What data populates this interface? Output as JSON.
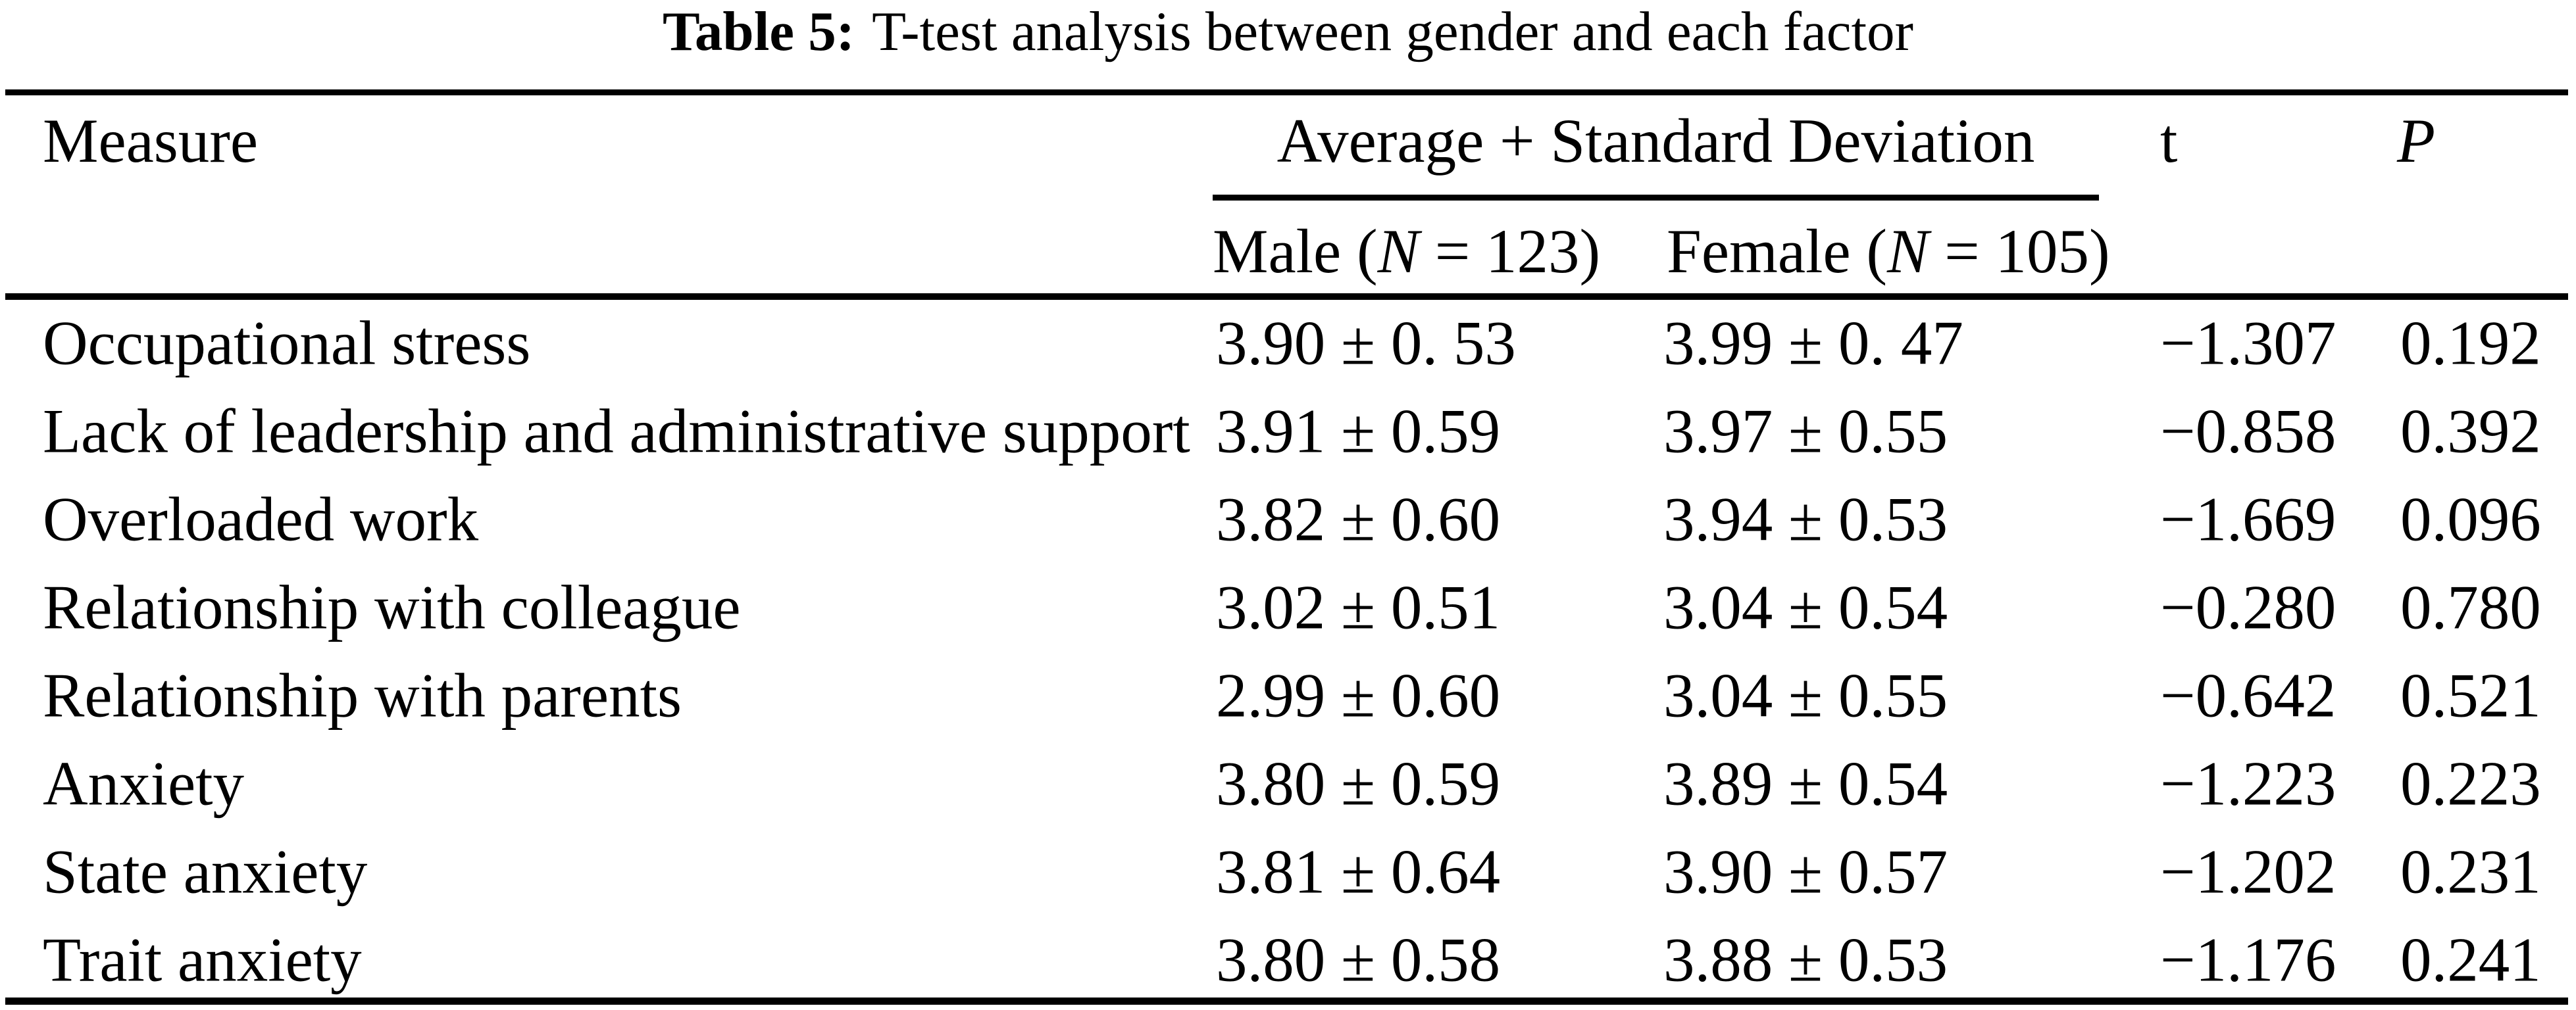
{
  "page": {
    "background": "#ffffff",
    "text_color": "#000000"
  },
  "title": {
    "label": "Table 5:",
    "text": "T-test analysis between gender and each factor"
  },
  "columns": {
    "measure": "Measure",
    "group": "Average + Standard Deviation",
    "t": "t",
    "p": "P"
  },
  "subcolumns": {
    "male": {
      "pre": "Male (",
      "n": "N",
      "post": " = 123)"
    },
    "female": {
      "pre": "Female (",
      "n": "N",
      "post": " = 105)"
    }
  },
  "rows": [
    {
      "measure": "Occupational stress",
      "male": "3.90 ± 0. 53",
      "female": "3.99 ± 0. 47",
      "t": "−1.307",
      "p": "0.192"
    },
    {
      "measure": "Lack of leadership and administrative support",
      "male": "3.91 ± 0.59",
      "female": "3.97 ± 0.55",
      "t": "−0.858",
      "p": "0.392"
    },
    {
      "measure": "Overloaded work",
      "male": "3.82 ± 0.60",
      "female": "3.94 ± 0.53",
      "t": "−1.669",
      "p": "0.096"
    },
    {
      "measure": "Relationship with colleague",
      "male": "3.02 ± 0.51",
      "female": "3.04 ± 0.54",
      "t": "−0.280",
      "p": "0.780"
    },
    {
      "measure": "Relationship with parents",
      "male": "2.99 ± 0.60",
      "female": "3.04 ± 0.55",
      "t": "−0.642",
      "p": "0.521"
    },
    {
      "measure": "Anxiety",
      "male": "3.80 ± 0.59",
      "female": "3.89 ± 0.54",
      "t": "−1.223",
      "p": "0.223"
    },
    {
      "measure": "State anxiety",
      "male": "3.81 ± 0.64",
      "female": "3.90 ± 0.57",
      "t": "−1.202",
      "p": "0.231"
    },
    {
      "measure": "Trait anxiety",
      "male": "3.80 ± 0.58",
      "female": "3.88 ± 0.53",
      "t": "−1.176",
      "p": "0.241"
    }
  ]
}
